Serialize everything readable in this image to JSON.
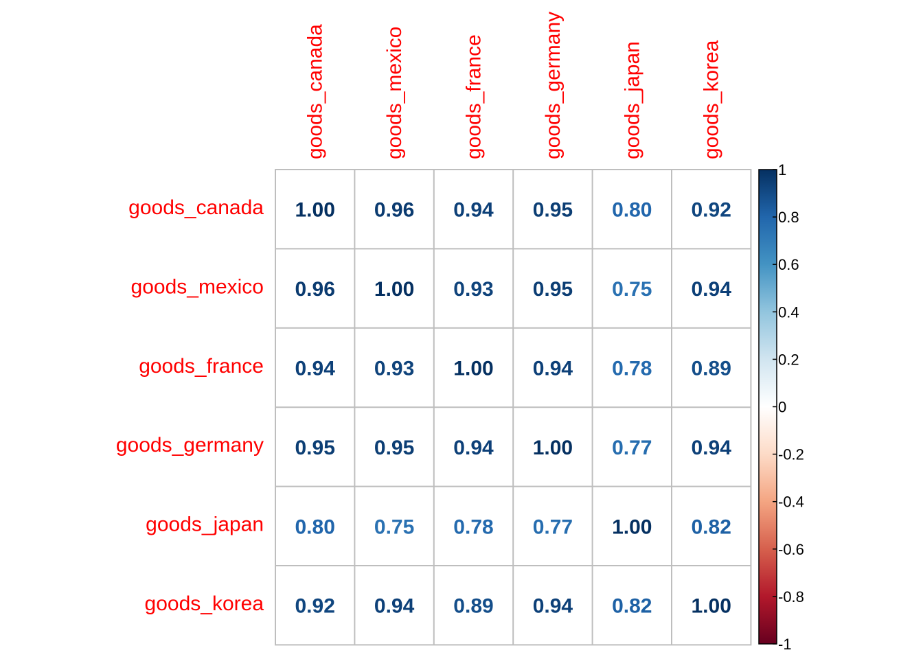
{
  "chart_data": {
    "type": "heatmap",
    "title": "",
    "variables": [
      "goods_canada",
      "goods_mexico",
      "goods_france",
      "goods_germany",
      "goods_japan",
      "goods_korea"
    ],
    "matrix": [
      [
        1.0,
        0.96,
        0.94,
        0.95,
        0.8,
        0.92
      ],
      [
        0.96,
        1.0,
        0.93,
        0.95,
        0.75,
        0.94
      ],
      [
        0.94,
        0.93,
        1.0,
        0.94,
        0.78,
        0.89
      ],
      [
        0.95,
        0.95,
        0.94,
        1.0,
        0.77,
        0.94
      ],
      [
        0.8,
        0.75,
        0.78,
        0.77,
        1.0,
        0.82
      ],
      [
        0.92,
        0.94,
        0.89,
        0.94,
        0.82,
        1.0
      ]
    ],
    "value_labels": [
      [
        "1.00",
        "0.96",
        "0.94",
        "0.95",
        "0.80",
        "0.92"
      ],
      [
        "0.96",
        "1.00",
        "0.93",
        "0.95",
        "0.75",
        "0.94"
      ],
      [
        "0.94",
        "0.93",
        "1.00",
        "0.94",
        "0.78",
        "0.89"
      ],
      [
        "0.95",
        "0.95",
        "0.94",
        "1.00",
        "0.77",
        "0.94"
      ],
      [
        "0.80",
        "0.75",
        "0.78",
        "0.77",
        "1.00",
        "0.82"
      ],
      [
        "0.92",
        "0.94",
        "0.89",
        "0.94",
        "0.82",
        "1.00"
      ]
    ],
    "colorbar": {
      "range": [
        -1,
        1
      ],
      "ticks": [
        1,
        0.8,
        0.6,
        0.4,
        0.2,
        0,
        -0.2,
        -0.4,
        -0.6,
        -0.8,
        -1
      ],
      "tick_labels": [
        "1",
        "0.8",
        "0.6",
        "0.4",
        "0.2",
        "0",
        "-0.2",
        "-0.4",
        "-0.6",
        "-0.8",
        "-1"
      ],
      "colors": [
        "#67001F",
        "#B2182B",
        "#D6604D",
        "#F4A582",
        "#FDDBC7",
        "#FFFFFF",
        "#D1E5F0",
        "#92C5DE",
        "#4393C3",
        "#2166AC",
        "#053061"
      ]
    },
    "label_color": "#FF0000",
    "grid_color": "#BEBEBE"
  }
}
